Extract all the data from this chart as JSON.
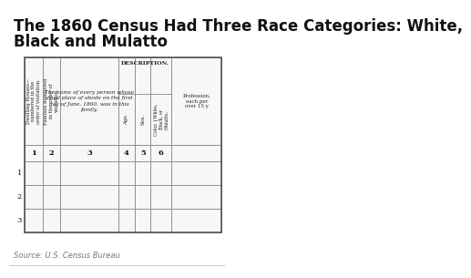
{
  "title_line1": "The 1860 Census Had Three Race Categories: White,",
  "title_line2": "Black and Mulatto",
  "title_fontsize": 12,
  "title_color": "#111111",
  "background_color": "#ffffff",
  "table_bg": "#f8f7f5",
  "source_text": "Source: U.S. Census Bureau",
  "col1_header": "Dwelling Houses—\nnumbered in the\norder of visitation.",
  "col2_header": "Families numbered\nin the order of\nvisitation.",
  "col3_header": "The name of every person whose\nusual place of abode on the first\nday of June, 1860, was in this\nfamily.",
  "description_label": "DESCRIPTION.",
  "col4_header": "Age.",
  "col5_header": "Sex.",
  "col6_header": "Color, {White,\nBlack, or\nMulatto.",
  "col7_header": "Profession,\neach per\nover 15 y",
  "col_numbers": [
    "1",
    "2",
    "3",
    "4",
    "5",
    "6"
  ],
  "row_numbers": [
    "1",
    "2",
    "3"
  ],
  "source_color": "#777777",
  "line_color": "#888888",
  "text_color": "#222222"
}
